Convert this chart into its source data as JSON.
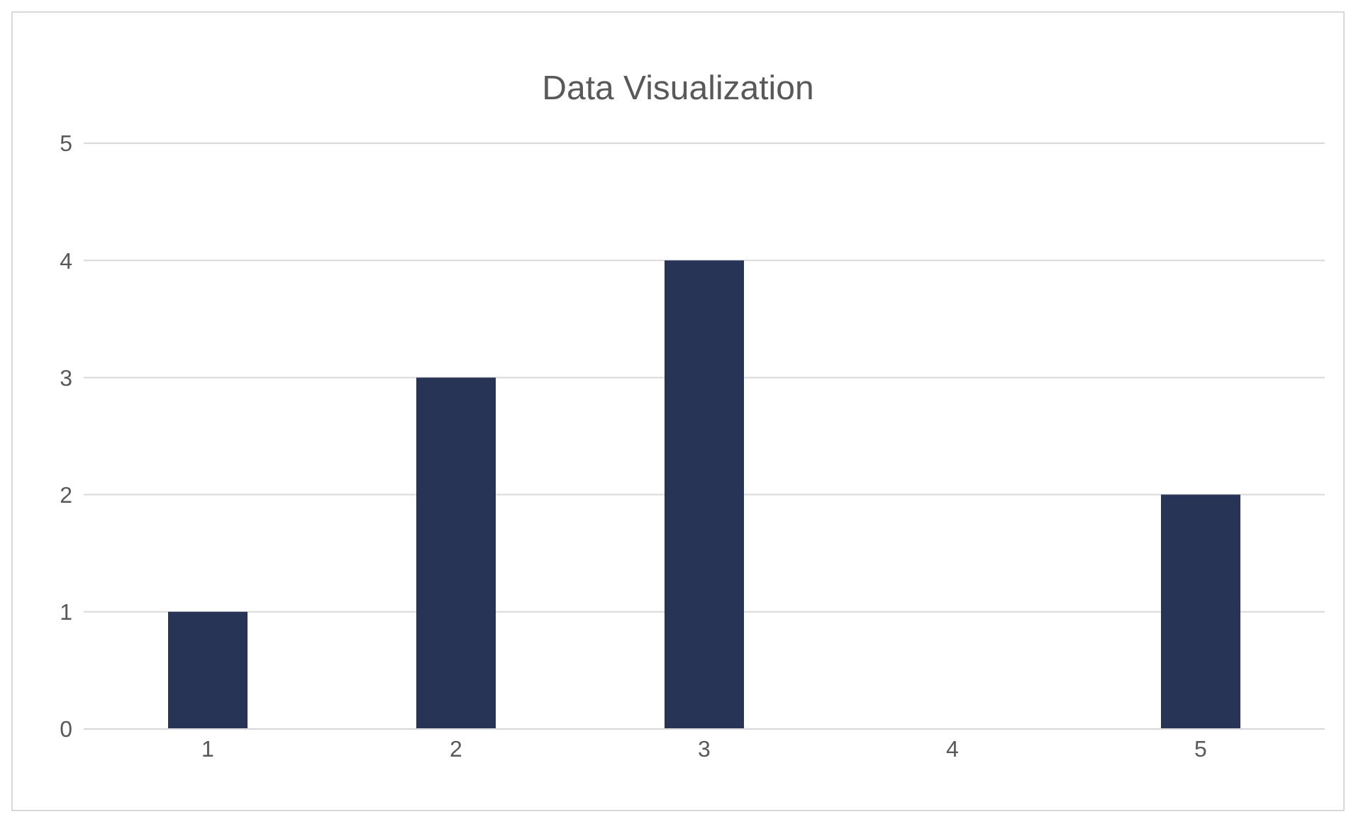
{
  "chart_data": {
    "type": "bar",
    "title": "Data Visualization",
    "categories": [
      "1",
      "2",
      "3",
      "4",
      "5"
    ],
    "values": [
      1,
      3,
      4,
      0,
      2
    ],
    "color": "#283456",
    "ylim": [
      0,
      5
    ],
    "yticks": [
      0,
      1,
      2,
      3,
      4,
      5
    ],
    "grid": "y"
  }
}
